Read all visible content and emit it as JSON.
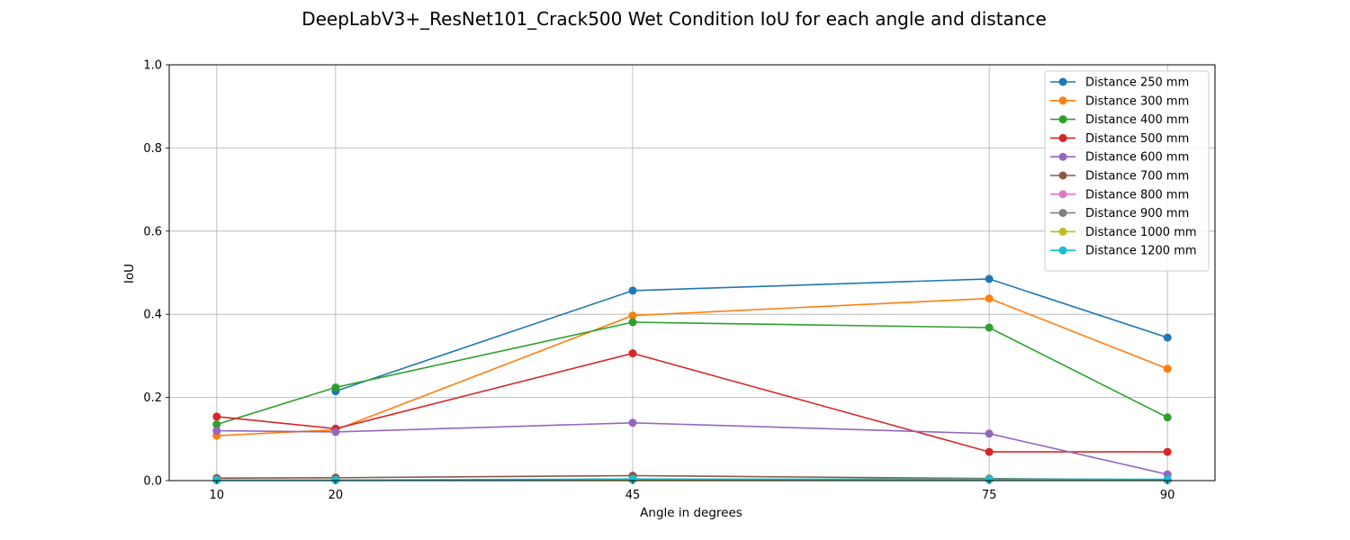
{
  "chart_data": {
    "type": "line",
    "title": "DeepLabV3+_ResNet101_Crack500 Wet Condition IoU for each angle and distance",
    "xlabel": "Angle in degrees",
    "ylabel": "IoU",
    "x": [
      10,
      20,
      45,
      75,
      90
    ],
    "xticks": [
      "10",
      "20",
      "45",
      "75",
      "90"
    ],
    "xlim": [
      6.0,
      94.0
    ],
    "ylim": [
      0.0,
      1.0
    ],
    "yticks": [
      "0.0",
      "0.2",
      "0.4",
      "0.6",
      "0.8",
      "1.0"
    ],
    "grid": true,
    "legend_position": "top-right",
    "series": [
      {
        "name": "Distance 250 mm",
        "color": "#1f77b4",
        "values": [
          null,
          0.215,
          0.457,
          0.485,
          0.344
        ]
      },
      {
        "name": "Distance 300 mm",
        "color": "#ff7f0e",
        "values": [
          0.108,
          0.122,
          0.397,
          0.438,
          0.269
        ]
      },
      {
        "name": "Distance 400 mm",
        "color": "#2ca02c",
        "values": [
          0.135,
          0.224,
          0.381,
          0.368,
          0.152
        ]
      },
      {
        "name": "Distance 500 mm",
        "color": "#d62728",
        "values": [
          0.154,
          0.125,
          0.306,
          0.069,
          0.069
        ]
      },
      {
        "name": "Distance 600 mm",
        "color": "#9467bd",
        "values": [
          0.12,
          0.117,
          0.139,
          0.113,
          0.015
        ]
      },
      {
        "name": "Distance 700 mm",
        "color": "#8c564b",
        "values": [
          0.006,
          0.007,
          0.012,
          0.005,
          0.002
        ]
      },
      {
        "name": "Distance 800 mm",
        "color": "#e377c2",
        "values": [
          0.001,
          0.001,
          0.002,
          0.002,
          0.001
        ]
      },
      {
        "name": "Distance 900 mm",
        "color": "#7f7f7f",
        "values": [
          0.001,
          0.001,
          0.002,
          0.003,
          0.001
        ]
      },
      {
        "name": "Distance 1000 mm",
        "color": "#bcbd22",
        "values": [
          0.001,
          0.001,
          0.003,
          0.003,
          0.002
        ]
      },
      {
        "name": "Distance 1200 mm",
        "color": "#17becf",
        "values": [
          0.001,
          0.001,
          0.004,
          0.003,
          0.003
        ]
      }
    ]
  }
}
